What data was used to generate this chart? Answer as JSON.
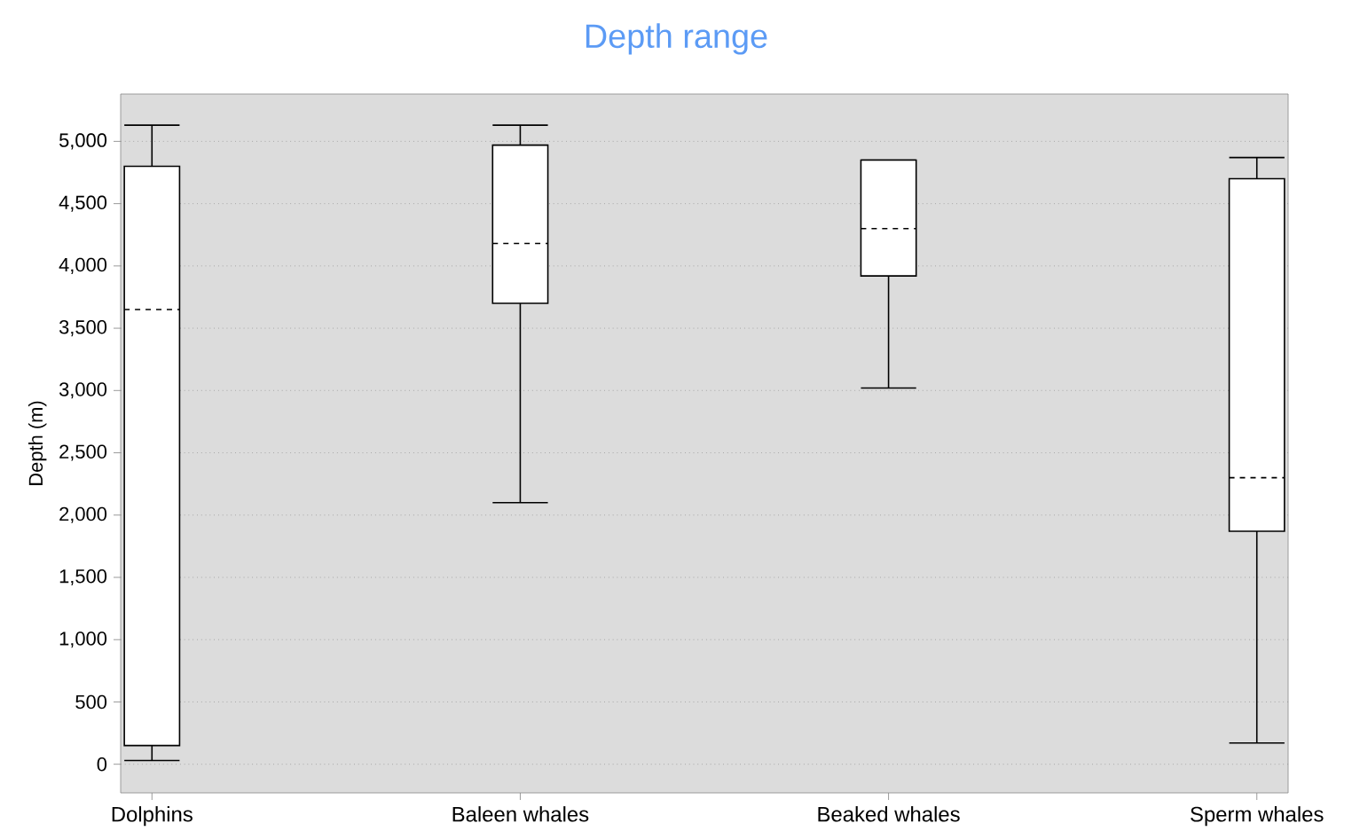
{
  "chart_data": {
    "type": "box",
    "title": "Depth range",
    "ylabel": "Depth (m)",
    "categories": [
      "Dolphins",
      "Baleen whales",
      "Beaked whales",
      "Sperm whales"
    ],
    "boxes": [
      {
        "low": 30,
        "q1": 150,
        "median": 3650,
        "q3": 4800,
        "high": 5130
      },
      {
        "low": 2100,
        "q1": 3700,
        "median": 4180,
        "q3": 4970,
        "high": 5130
      },
      {
        "low": 3020,
        "q1": 3920,
        "median": 4300,
        "q3": 4850,
        "high": 4850
      },
      {
        "low": 170,
        "q1": 1870,
        "median": 2300,
        "q3": 4700,
        "high": 4870
      }
    ],
    "ylim": [
      -230,
      5380
    ],
    "yticks": [
      0,
      500,
      {
        "value": 1000,
        "label": "1,000"
      },
      {
        "value": 1500,
        "label": "1,500"
      },
      {
        "value": 2000,
        "label": "2,000"
      },
      {
        "value": 2500,
        "label": "2,500"
      },
      {
        "value": 3000,
        "label": "3,000"
      },
      {
        "value": 3500,
        "label": "3,500"
      },
      {
        "value": 4000,
        "label": "4,000"
      },
      {
        "value": 4500,
        "label": "4,500"
      },
      {
        "value": 5000,
        "label": "5,000"
      }
    ],
    "grid": "y"
  }
}
